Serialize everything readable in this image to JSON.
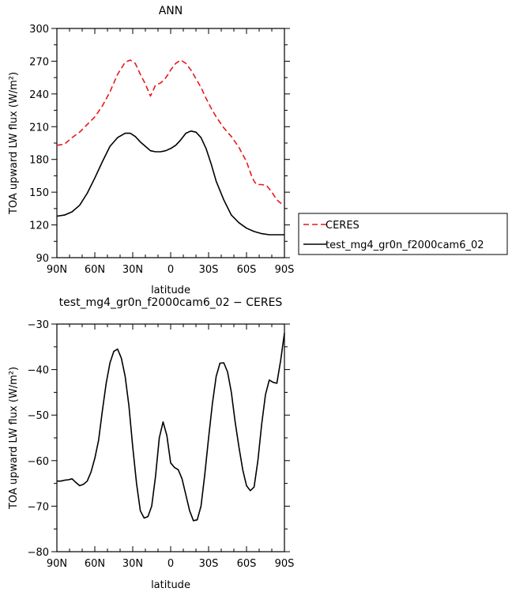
{
  "chart_data": [
    {
      "type": "line",
      "title": "ANN",
      "xlabel": "latitude",
      "ylabel": "TOA upward LW flux (W/m²)",
      "xlim": [
        90,
        -90
      ],
      "ylim": [
        90,
        300
      ],
      "xticks": [
        90,
        60,
        30,
        0,
        -30,
        -60,
        -90
      ],
      "xtick_labels": [
        "90N",
        "60N",
        "30N",
        "0",
        "30S",
        "60S",
        "90S"
      ],
      "yticks": [
        90,
        120,
        150,
        180,
        210,
        240,
        270,
        300
      ],
      "ytick_labels": [
        "90",
        "120",
        "150",
        "180",
        "210",
        "240",
        "270",
        "300"
      ],
      "legend": "right",
      "series": [
        {
          "name": "CERES",
          "color": "#e8191b",
          "dash": "dashed",
          "x": [
            90,
            84,
            78,
            72,
            66,
            60,
            54,
            48,
            42,
            36,
            32,
            28,
            24,
            20,
            16,
            12,
            8,
            5,
            2,
            0,
            -4,
            -8,
            -12,
            -16,
            -20,
            -24,
            -28,
            -32,
            -36,
            -42,
            -48,
            -54,
            -60,
            -64,
            -66,
            -68,
            -72,
            -76,
            -80,
            -84,
            -87,
            -90
          ],
          "y": [
            193,
            194,
            200,
            205,
            212,
            219,
            229,
            242,
            258,
            269,
            271,
            268,
            258,
            249,
            238,
            248,
            250,
            253,
            258,
            262,
            268,
            271,
            268,
            262,
            254,
            246,
            236,
            227,
            219,
            209,
            201,
            191,
            178,
            165,
            160,
            157,
            157,
            156,
            150,
            143,
            140,
            139
          ]
        },
        {
          "name": "test_mg4_gr0n_f2000cam6_02",
          "color": "#000000",
          "dash": "solid",
          "x": [
            90,
            84,
            78,
            72,
            66,
            60,
            54,
            48,
            42,
            36,
            32,
            28,
            24,
            20,
            16,
            12,
            8,
            4,
            0,
            -4,
            -8,
            -12,
            -16,
            -20,
            -24,
            -28,
            -32,
            -36,
            -42,
            -48,
            -54,
            -60,
            -66,
            -72,
            -78,
            -84,
            -90
          ],
          "y": [
            128,
            129,
            132,
            138,
            149,
            163,
            178,
            192,
            200,
            204,
            204,
            201,
            196,
            192,
            188,
            187,
            187,
            188,
            190,
            193,
            198,
            204,
            206,
            205,
            200,
            190,
            176,
            160,
            143,
            129,
            122,
            117,
            114,
            112,
            111,
            111,
            111
          ]
        }
      ]
    },
    {
      "type": "line",
      "title": "test_mg4_gr0n_f2000cam6_02 − CERES",
      "xlabel": "latitude",
      "ylabel": "TOA upward LW flux (W/m²)",
      "xlim": [
        90,
        -90
      ],
      "ylim": [
        -80,
        -30
      ],
      "xticks": [
        90,
        60,
        30,
        0,
        -30,
        -60,
        -90
      ],
      "xtick_labels": [
        "90N",
        "60N",
        "30N",
        "0",
        "30S",
        "60S",
        "90S"
      ],
      "yticks": [
        -80,
        -70,
        -60,
        -50,
        -40,
        -30
      ],
      "ytick_labels": [
        "−80",
        "−70",
        "−60",
        "−50",
        "−40",
        "−30"
      ],
      "series": [
        {
          "color": "#000000",
          "dash": "solid",
          "x": [
            90,
            87,
            84,
            81,
            78,
            75,
            72,
            69,
            66,
            63,
            60,
            57,
            54,
            51,
            48,
            45,
            42,
            39,
            36,
            33,
            30,
            27,
            24,
            21,
            18,
            15,
            12,
            9,
            6,
            3,
            0,
            -3,
            -6,
            -9,
            -12,
            -15,
            -18,
            -21,
            -24,
            -27,
            -30,
            -33,
            -36,
            -39,
            -42,
            -45,
            -48,
            -51,
            -54,
            -57,
            -60,
            -63,
            -66,
            -69,
            -72,
            -75,
            -78,
            -81,
            -84,
            -87,
            -90
          ],
          "y": [
            -64.5,
            -64.5,
            -64.3,
            -64.2,
            -64.0,
            -64.8,
            -65.5,
            -65.2,
            -64.5,
            -62.5,
            -59.5,
            -55.5,
            -49.0,
            -43.0,
            -38.5,
            -36.0,
            -35.5,
            -37.5,
            -41.5,
            -48.0,
            -57.0,
            -65.0,
            -71.0,
            -72.6,
            -72.3,
            -70.0,
            -63.5,
            -55.0,
            -51.5,
            -54.5,
            -60.5,
            -61.5,
            -62.0,
            -64.0,
            -67.5,
            -71.0,
            -73.2,
            -73.0,
            -70.0,
            -63.0,
            -55.0,
            -47.5,
            -41.5,
            -38.6,
            -38.5,
            -40.5,
            -45.0,
            -51.5,
            -57.0,
            -62.0,
            -65.5,
            -66.6,
            -65.8,
            -60.0,
            -52.0,
            -45.5,
            -42.3,
            -42.8,
            -43.0,
            -38.0,
            -32.0
          ]
        }
      ]
    }
  ],
  "legend_items": [
    {
      "label": "CERES"
    },
    {
      "label": "test_mg4_gr0n_f2000cam6_02"
    }
  ]
}
